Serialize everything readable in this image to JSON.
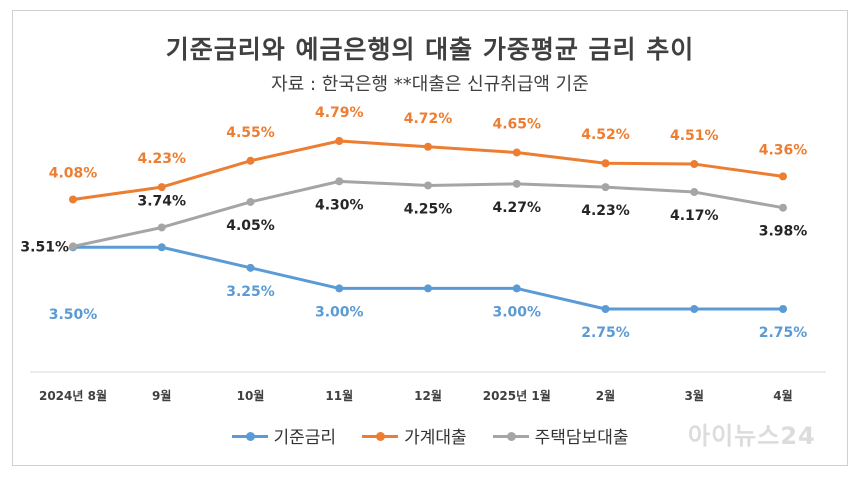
{
  "chart_data": {
    "type": "line",
    "title": "기준금리와 예금은행의 대출 가중평균 금리 추이",
    "subtitle": "자료 : 한국은행   **대출은 신규취급액 기준",
    "categories": [
      "2024년 8월",
      "9월",
      "10월",
      "11월",
      "12월",
      "2025년 1월",
      "2월",
      "3월",
      "4월"
    ],
    "series": [
      {
        "name": "기준금리",
        "color": "#5b9bd5",
        "values": [
          3.5,
          3.5,
          3.25,
          3.0,
          3.0,
          3.0,
          2.75,
          2.75,
          2.75
        ],
        "labels": [
          "3.50%",
          "",
          "3.25%",
          "3.00%",
          "",
          "3.00%",
          "2.75%",
          "",
          "2.75%"
        ]
      },
      {
        "name": "가계대출",
        "color": "#ed7d31",
        "values": [
          4.08,
          4.23,
          4.55,
          4.79,
          4.72,
          4.65,
          4.52,
          4.51,
          4.36
        ],
        "labels": [
          "4.08%",
          "4.23%",
          "4.55%",
          "4.79%",
          "4.72%",
          "4.65%",
          "4.52%",
          "4.51%",
          "4.36%"
        ]
      },
      {
        "name": "주택담보대출",
        "color": "#a5a5a5",
        "values": [
          3.51,
          3.74,
          4.05,
          4.3,
          4.25,
          4.27,
          4.23,
          4.17,
          3.98
        ],
        "labels": [
          "3.51%",
          "3.74%",
          "4.05%",
          "4.30%",
          "4.25%",
          "4.27%",
          "4.23%",
          "4.17%",
          "3.98%"
        ]
      }
    ],
    "legend_position": "bottom",
    "grid": false
  },
  "watermark": "아이뉴스24"
}
